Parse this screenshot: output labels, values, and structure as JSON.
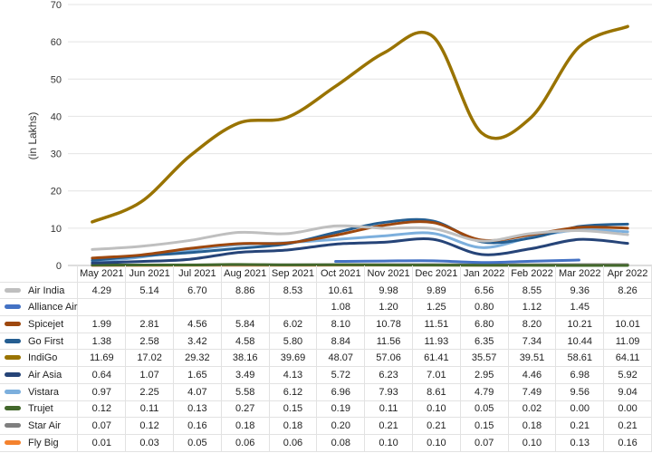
{
  "chart_data": {
    "type": "line",
    "title": "",
    "xlabel": "",
    "ylabel": "(in Lakhs)",
    "ylim": [
      0,
      70
    ],
    "yticks": [
      "0",
      "10",
      "20",
      "30",
      "40",
      "50",
      "60",
      "70"
    ],
    "grid": true,
    "legend": "table-bottom",
    "categories": [
      "May 2021",
      "Jun 2021",
      "Jul 2021",
      "Aug 2021",
      "Sep 2021",
      "Oct 2021",
      "Nov 2021",
      "Dec 2021",
      "Jan 2022",
      "Feb 2022",
      "Mar 2022",
      "Apr 2022"
    ],
    "series": [
      {
        "name": "Air India",
        "color": "#bfbfbf",
        "values": [
          4.29,
          5.14,
          6.7,
          8.86,
          8.53,
          10.61,
          9.98,
          9.89,
          6.56,
          8.55,
          9.36,
          8.26
        ]
      },
      {
        "name": "Alliance Air",
        "color": "#4472c4",
        "values": [
          null,
          null,
          null,
          null,
          null,
          1.08,
          1.2,
          1.25,
          0.8,
          1.12,
          1.45,
          null
        ]
      },
      {
        "name": "Spicejet",
        "color": "#9e480e",
        "values": [
          1.99,
          2.81,
          4.56,
          5.84,
          6.02,
          8.1,
          10.78,
          11.51,
          6.8,
          8.2,
          10.21,
          10.01
        ]
      },
      {
        "name": "Go First",
        "color": "#255e91",
        "values": [
          1.38,
          2.58,
          3.42,
          4.58,
          5.8,
          8.84,
          11.56,
          11.93,
          6.35,
          7.34,
          10.44,
          11.09
        ]
      },
      {
        "name": "IndiGo",
        "color": "#997300",
        "values": [
          11.69,
          17.02,
          29.32,
          38.16,
          39.69,
          48.07,
          57.06,
          61.41,
          35.57,
          39.51,
          58.61,
          64.11
        ]
      },
      {
        "name": "Air Asia",
        "color": "#264478",
        "values": [
          0.64,
          1.07,
          1.65,
          3.49,
          4.13,
          5.72,
          6.23,
          7.01,
          2.95,
          4.46,
          6.98,
          5.92
        ]
      },
      {
        "name": "Vistara",
        "color": "#7cafdd",
        "values": [
          0.97,
          2.25,
          4.07,
          5.58,
          6.12,
          6.96,
          7.93,
          8.61,
          4.79,
          7.49,
          9.56,
          9.04
        ]
      },
      {
        "name": "Trujet",
        "color": "#43682b",
        "values": [
          0.12,
          0.11,
          0.13,
          0.27,
          0.15,
          0.19,
          0.11,
          0.1,
          0.05,
          0.02,
          0.0,
          0.0
        ]
      },
      {
        "name": "Star Air",
        "color": "#7f7f7f",
        "values": [
          0.07,
          0.12,
          0.16,
          0.18,
          0.18,
          0.2,
          0.21,
          0.21,
          0.15,
          0.18,
          0.21,
          0.21
        ]
      },
      {
        "name": "Fly Big",
        "color": "#f4822e",
        "values": [
          0.01,
          0.03,
          0.05,
          0.06,
          0.06,
          0.08,
          0.1,
          0.1,
          0.07,
          0.1,
          0.13,
          0.16
        ]
      }
    ]
  }
}
